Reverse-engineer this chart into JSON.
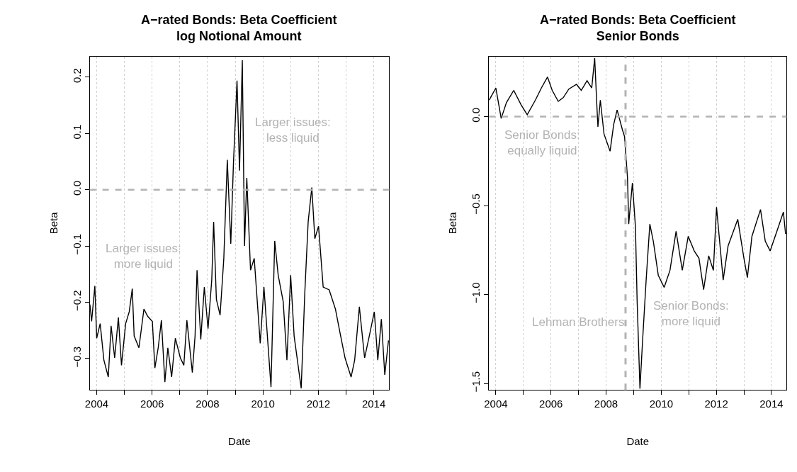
{
  "chart_data": [
    {
      "type": "line",
      "title": "A−rated Bonds: Beta Coefficient\nlog Notional Amount",
      "xlabel": "Date",
      "ylabel": "Beta",
      "x": [
        "2003-10-04",
        "2003-10-26",
        "2003-12-08",
        "2004-01-01",
        "2004-02-16",
        "2004-04-05",
        "2004-06-02",
        "2004-07-09",
        "2004-08-25",
        "2004-10-13",
        "2004-11-23",
        "2005-01-17",
        "2005-03-05",
        "2005-04-14",
        "2005-05-09",
        "2005-07-11",
        "2005-09-15",
        "2005-11-03",
        "2006-01-04",
        "2006-02-06",
        "2006-03-22",
        "2006-05-03",
        "2006-06-18",
        "2006-07-27",
        "2006-09-15",
        "2006-11-03",
        "2007-01-08",
        "2007-02-23",
        "2007-04-04",
        "2007-06-15",
        "2007-07-21",
        "2007-08-16",
        "2007-10-04",
        "2007-11-20",
        "2008-01-08",
        "2008-02-26",
        "2008-03-22",
        "2008-04-27",
        "2008-06-15",
        "2008-08-03",
        "2008-09-18",
        "2008-11-03",
        "2008-12-08",
        "2009-01-24",
        "2009-02-26",
        "2009-04-04",
        "2009-05-03",
        "2009-06-02",
        "2009-07-21",
        "2009-09-08",
        "2009-11-26",
        "2010-01-14",
        "2010-04-17",
        "2010-06-05",
        "2010-07-21",
        "2010-09-25",
        "2010-11-13",
        "2011-01-01",
        "2011-02-16",
        "2011-05-20",
        "2011-07-07",
        "2011-08-20",
        "2011-10-07",
        "2011-11-16",
        "2012-01-04",
        "2012-03-05",
        "2012-05-23",
        "2012-08-13",
        "2012-10-14",
        "2012-12-18",
        "2013-03-08",
        "2013-04-24",
        "2013-06-25",
        "2013-09-02",
        "2013-11-03",
        "2014-01-08",
        "2014-02-23",
        "2014-04-11",
        "2014-05-26",
        "2014-07-14"
      ],
      "series": [
        {
          "color": "#000000",
          "values": [
            -0.204,
            -0.234,
            -0.171,
            -0.264,
            -0.238,
            -0.303,
            -0.333,
            -0.242,
            -0.299,
            -0.227,
            -0.312,
            -0.238,
            -0.217,
            -0.176,
            -0.26,
            -0.281,
            -0.212,
            -0.225,
            -0.234,
            -0.317,
            -0.281,
            -0.232,
            -0.342,
            -0.281,
            -0.333,
            -0.264,
            -0.299,
            -0.312,
            -0.232,
            -0.325,
            -0.26,
            -0.143,
            -0.266,
            -0.173,
            -0.247,
            -0.16,
            -0.057,
            -0.195,
            -0.223,
            -0.122,
            0.053,
            -0.096,
            0.047,
            0.194,
            0.034,
            0.23,
            -0.1,
            0.021,
            -0.143,
            -0.122,
            -0.273,
            -0.173,
            -0.351,
            -0.091,
            -0.152,
            -0.199,
            -0.303,
            -0.152,
            -0.26,
            -0.353,
            -0.182,
            -0.057,
            0.004,
            -0.087,
            -0.065,
            -0.173,
            -0.178,
            -0.212,
            -0.255,
            -0.299,
            -0.333,
            -0.303,
            -0.208,
            -0.299,
            -0.26,
            -0.217,
            -0.303,
            -0.23,
            -0.329,
            -0.268
          ]
        }
      ],
      "xlim": [
        "2003-10-01",
        "2014-07-22"
      ],
      "xticks": [
        "2004",
        {
          "value": "2005",
          "label": null
        },
        "2006",
        {
          "value": "2007",
          "label": null
        },
        "2008",
        {
          "value": "2009",
          "label": null
        },
        "2010",
        {
          "value": "2011",
          "label": null
        },
        "2012",
        {
          "value": "2013",
          "label": null
        },
        "2014"
      ],
      "ylim": [
        -0.356,
        0.237
      ],
      "yticks": [
        {
          "value": -0.3,
          "label": "−0.3"
        },
        {
          "value": -0.2,
          "label": "−0.2"
        },
        {
          "value": -0.1,
          "label": "−0.1"
        },
        {
          "value": 0,
          "label": "0.0"
        },
        0.1,
        0.2
      ],
      "ref_lines": [
        {
          "axis": "y",
          "value": 0,
          "color": "#b3b3b3",
          "line_style": "dashed"
        }
      ],
      "annotations": [
        "Larger issues:\nless liquid",
        "Larger issues:\nmore liquid"
      ],
      "grid": "x",
      "marker": "none",
      "line_style": "solid"
    },
    {
      "type": "line",
      "title": "A−rated Bonds: Beta Coefficient\nSenior Bonds",
      "xlabel": "Date",
      "ylabel": "Beta",
      "x": [
        "2003-10-04",
        "2004-01-01",
        "2004-03-12",
        "2004-05-20",
        "2004-08-25",
        "2004-12-02",
        "2005-02-20",
        "2005-06-08",
        "2005-08-26",
        "2005-11-16",
        "2006-01-17",
        "2006-04-07",
        "2006-06-12",
        "2006-08-25",
        "2006-12-05",
        "2007-02-06",
        "2007-04-24",
        "2007-06-25",
        "2007-08-03",
        "2007-09-02",
        "2007-09-15",
        "2007-10-17",
        "2007-12-05",
        "2008-02-23",
        "2008-04-11",
        "2008-05-26",
        "2008-08-03",
        "2008-09-02",
        "2008-10-11",
        "2008-10-27",
        "2008-12-15",
        "2009-01-24",
        "2009-02-16",
        "2009-03-25",
        "2009-04-27",
        "2009-06-15",
        "2009-08-03",
        "2009-09-18",
        "2009-11-23",
        "2010-02-09",
        "2010-04-27",
        "2010-07-17",
        "2010-10-07",
        "2010-12-25",
        "2011-03-15",
        "2011-05-16",
        "2011-07-17",
        "2011-09-22",
        "2011-11-23",
        "2012-01-04",
        "2012-04-01",
        "2012-06-05",
        "2012-10-11",
        "2013-01-01",
        "2013-02-16",
        "2013-04-17",
        "2013-08-09",
        "2013-10-11",
        "2013-12-15",
        "2014-04-04",
        "2014-06-08",
        "2014-07-07"
      ],
      "series": [
        {
          "color": "#000000",
          "values": [
            0.093,
            0.161,
            -0.01,
            0.079,
            0.148,
            0.066,
            0.011,
            0.093,
            0.161,
            0.223,
            0.148,
            0.086,
            0.107,
            0.155,
            0.182,
            0.148,
            0.202,
            0.161,
            0.33,
            0.052,
            -0.057,
            0.093,
            -0.098,
            -0.194,
            -0.044,
            0.038,
            -0.071,
            -0.112,
            -0.345,
            -0.604,
            -0.372,
            -0.618,
            -1.042,
            -1.53,
            -1.274,
            -0.919,
            -0.604,
            -0.7,
            -0.892,
            -0.96,
            -0.864,
            -0.645,
            -0.864,
            -0.673,
            -0.755,
            -0.796,
            -0.973,
            -0.782,
            -0.864,
            -0.509,
            -0.919,
            -0.727,
            -0.577,
            -0.796,
            -0.905,
            -0.673,
            -0.522,
            -0.7,
            -0.755,
            -0.618,
            -0.536,
            -0.659
          ]
        }
      ],
      "xlim": [
        "2003-10-01",
        "2014-07-22"
      ],
      "xticks": [
        "2004",
        {
          "value": "2005",
          "label": null
        },
        "2006",
        {
          "value": "2007",
          "label": null
        },
        "2008",
        {
          "value": "2009",
          "label": null
        },
        "2010",
        {
          "value": "2011",
          "label": null
        },
        "2012",
        {
          "value": "2013",
          "label": null
        },
        "2014"
      ],
      "ylim": [
        -1.537,
        0.339
      ],
      "yticks": [
        {
          "value": -1.5,
          "label": "−1.5"
        },
        {
          "value": -1,
          "label": "−1.0"
        },
        {
          "value": -0.5,
          "label": "−0.5"
        },
        {
          "value": 0,
          "label": "0.0"
        }
      ],
      "ref_lines": [
        {
          "axis": "y",
          "value": 0,
          "color": "#b3b3b3",
          "line_style": "dashed"
        },
        {
          "axis": "x",
          "value": "2008-09-15",
          "label": "Lehman Brothers",
          "color": "#b3b3b3",
          "line_style": "dashed"
        }
      ],
      "annotations": [
        "Senior Bonds:\nequally liquid",
        "Senior Bonds:\nmore liquid"
      ],
      "grid": "x",
      "marker": "none",
      "line_style": "solid"
    }
  ]
}
